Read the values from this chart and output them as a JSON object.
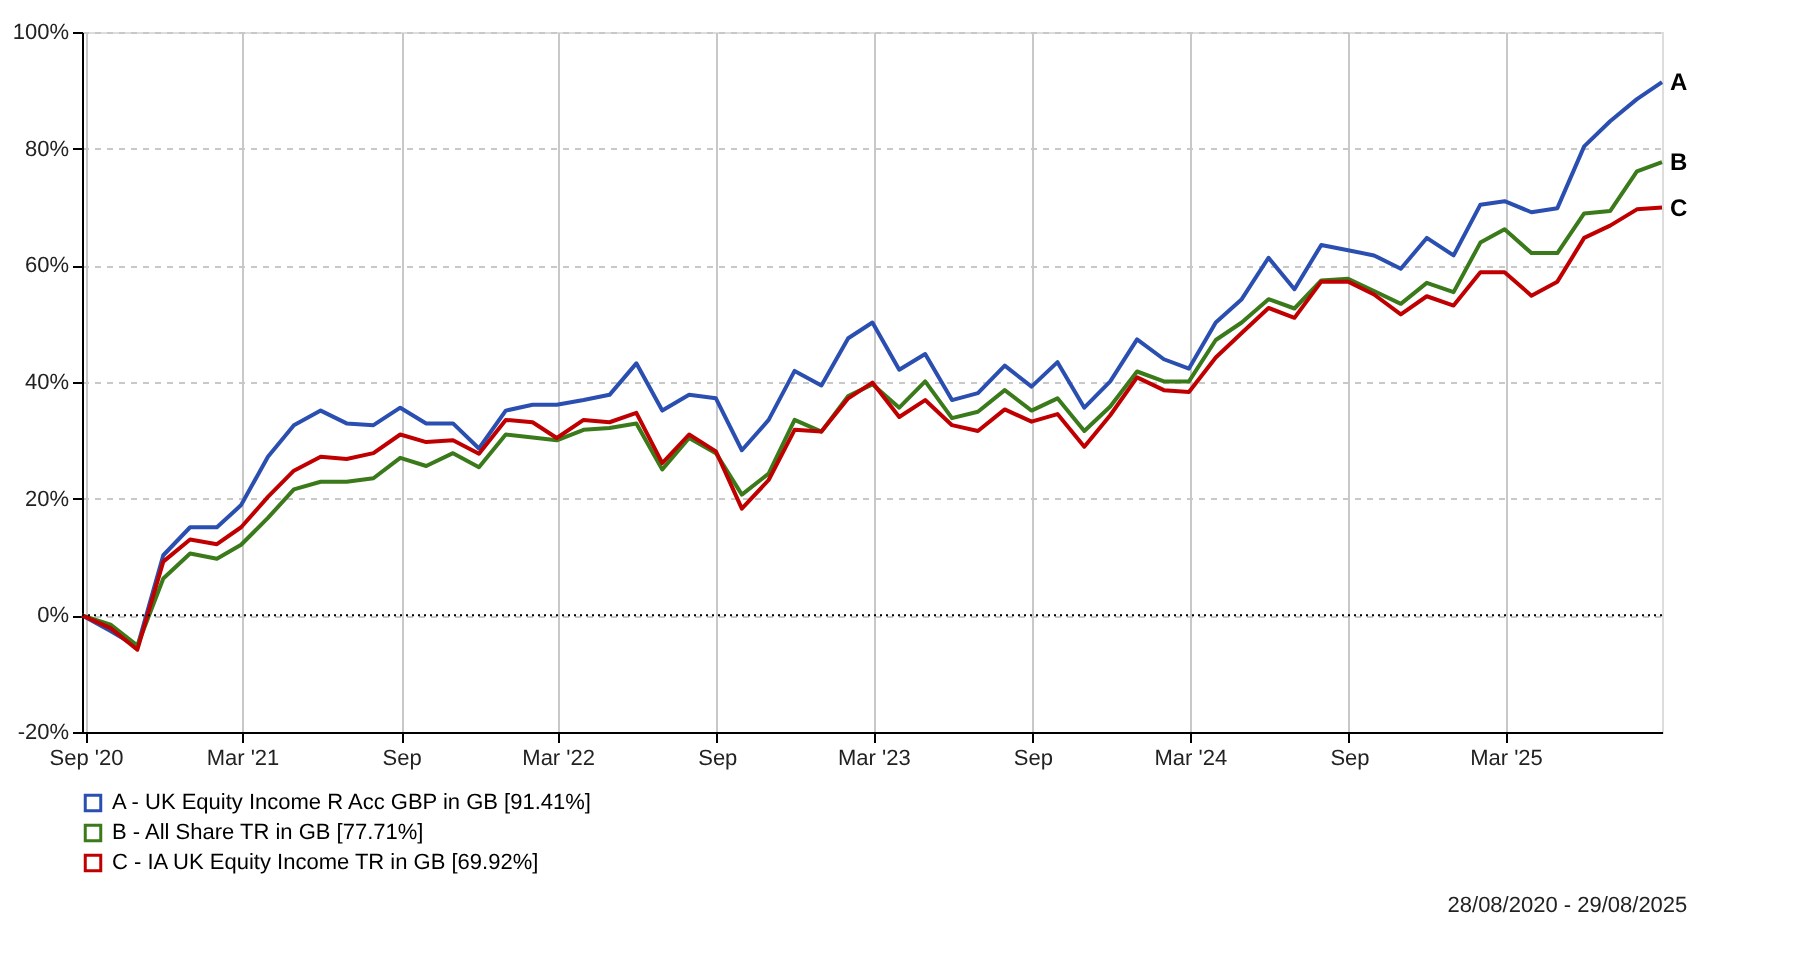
{
  "chart_data": {
    "type": "line",
    "x": [
      "2020-08-28",
      "2020-09-30",
      "2020-10-31",
      "2020-11-30",
      "2020-12-31",
      "2021-01-31",
      "2021-02-28",
      "2021-03-31",
      "2021-04-30",
      "2021-05-31",
      "2021-06-30",
      "2021-07-31",
      "2021-08-31",
      "2021-09-30",
      "2021-10-31",
      "2021-11-30",
      "2021-12-31",
      "2022-01-31",
      "2022-02-28",
      "2022-03-31",
      "2022-04-30",
      "2022-05-31",
      "2022-06-30",
      "2022-07-31",
      "2022-08-31",
      "2022-09-30",
      "2022-10-31",
      "2022-11-30",
      "2022-12-31",
      "2023-01-31",
      "2023-02-28",
      "2023-03-31",
      "2023-04-30",
      "2023-05-31",
      "2023-06-30",
      "2023-07-31",
      "2023-08-31",
      "2023-09-30",
      "2023-10-31",
      "2023-11-30",
      "2023-12-31",
      "2024-01-31",
      "2024-02-29",
      "2024-03-31",
      "2024-04-30",
      "2024-05-31",
      "2024-06-30",
      "2024-07-31",
      "2024-08-31",
      "2024-09-30",
      "2024-10-31",
      "2024-11-30",
      "2024-12-31",
      "2025-01-31",
      "2025-02-28",
      "2025-03-31",
      "2025-04-30",
      "2025-05-31",
      "2025-06-30",
      "2025-07-31",
      "2025-08-29"
    ],
    "series": [
      {
        "name": "A - UK Equity Income R Acc GBP in GB [91.41%]",
        "color": "#2a4fb0",
        "values": [
          0,
          -2.7,
          -5.4,
          10.3,
          15.1,
          15.1,
          18.9,
          27.2,
          32.6,
          35.1,
          32.9,
          32.6,
          35.6,
          32.9,
          32.9,
          28.6,
          35.1,
          36.1,
          36.1,
          36.9,
          37.8,
          43.2,
          35.1,
          37.8,
          37.2,
          28.3,
          33.5,
          41.9,
          39.4,
          47.5,
          50.2,
          42.1,
          44.8,
          36.9,
          38.1,
          42.8,
          39.2,
          43.4,
          35.6,
          40.1,
          47.3,
          43.9,
          42.3,
          50.2,
          54.2,
          61.3,
          55.9,
          63.5,
          62.6,
          61.7,
          59.4,
          64.7,
          61.7,
          70.4,
          71.0,
          69.1,
          69.8,
          80.4,
          84.7,
          88.5,
          91.4
        ]
      },
      {
        "name": "B - All Share TR in GB [77.71%]",
        "color": "#3a7a1a",
        "values": [
          0,
          -1.6,
          -5.2,
          6.3,
          10.6,
          9.7,
          12.1,
          16.7,
          21.6,
          22.9,
          22.9,
          23.5,
          27.0,
          25.6,
          27.8,
          25.4,
          31.0,
          30.5,
          30.0,
          31.8,
          32.1,
          32.9,
          25.0,
          30.4,
          27.8,
          20.7,
          24.3,
          33.5,
          31.5,
          37.6,
          39.6,
          35.6,
          40.1,
          33.8,
          34.9,
          38.6,
          35.1,
          37.2,
          31.6,
          35.8,
          41.8,
          40.1,
          40.1,
          47.2,
          50.2,
          54.2,
          52.6,
          57.4,
          57.7,
          55.6,
          53.4,
          57.0,
          55.4,
          63.9,
          66.2,
          62.1,
          62.1,
          68.9,
          69.3,
          76.1,
          77.7
        ]
      },
      {
        "name": "C - IA UK Equity Income TR in GB [69.92%]",
        "color": "#c00000",
        "values": [
          0,
          -2.2,
          -5.9,
          9.2,
          13.0,
          12.2,
          15.1,
          20.3,
          24.8,
          27.2,
          26.8,
          27.8,
          31.0,
          29.7,
          30.0,
          27.7,
          33.5,
          33.1,
          30.4,
          33.5,
          33.1,
          34.7,
          26.1,
          31.0,
          28.1,
          18.3,
          23.2,
          31.8,
          31.5,
          37.2,
          39.9,
          34.0,
          36.9,
          32.6,
          31.6,
          35.3,
          33.2,
          34.5,
          28.9,
          34.3,
          40.8,
          38.6,
          38.3,
          44.2,
          48.4,
          52.7,
          51.0,
          57.2,
          57.2,
          55.0,
          51.6,
          54.7,
          53.1,
          58.8,
          58.8,
          54.8,
          57.2,
          64.7,
          66.8,
          69.6,
          69.9
        ]
      }
    ],
    "xlim": [
      "2020-08-28",
      "2025-08-29"
    ],
    "xticks": [
      {
        "value": "2020-09-01",
        "label": "Sep '20"
      },
      {
        "value": "2021-03-01",
        "label": "Mar '21"
      },
      {
        "value": "2021-09-01",
        "label": "Sep"
      },
      {
        "value": "2022-03-01",
        "label": "Mar '22"
      },
      {
        "value": "2022-09-01",
        "label": "Sep"
      },
      {
        "value": "2023-03-01",
        "label": "Mar '23"
      },
      {
        "value": "2023-09-01",
        "label": "Sep"
      },
      {
        "value": "2024-03-01",
        "label": "Mar '24"
      },
      {
        "value": "2024-09-01",
        "label": "Sep"
      },
      {
        "value": "2025-03-01",
        "label": "Mar '25"
      }
    ],
    "ylim": [
      -20,
      100
    ],
    "yticks": [
      {
        "value": -20,
        "label": "-20%"
      },
      {
        "value": 0,
        "label": "0%"
      },
      {
        "value": 20,
        "label": "20%"
      },
      {
        "value": 40,
        "label": "40%"
      },
      {
        "value": 60,
        "label": "60%"
      },
      {
        "value": 80,
        "label": "80%"
      },
      {
        "value": 100,
        "label": "100%"
      }
    ],
    "ref_lines": [
      {
        "axis": "y",
        "value": 0,
        "color": "#000000",
        "line_style": "dotted"
      }
    ],
    "annotations": [
      {
        "text": "A",
        "x": "2025-08-29",
        "y": 91.4
      },
      {
        "text": "B",
        "x": "2025-08-29",
        "y": 77.7
      },
      {
        "text": "C",
        "x": "2025-08-29",
        "y": 69.9
      },
      "28/08/2020 - 29/08/2025"
    ],
    "grid": true,
    "legend": "bottom left",
    "marker": "none",
    "line_style": "solid"
  }
}
